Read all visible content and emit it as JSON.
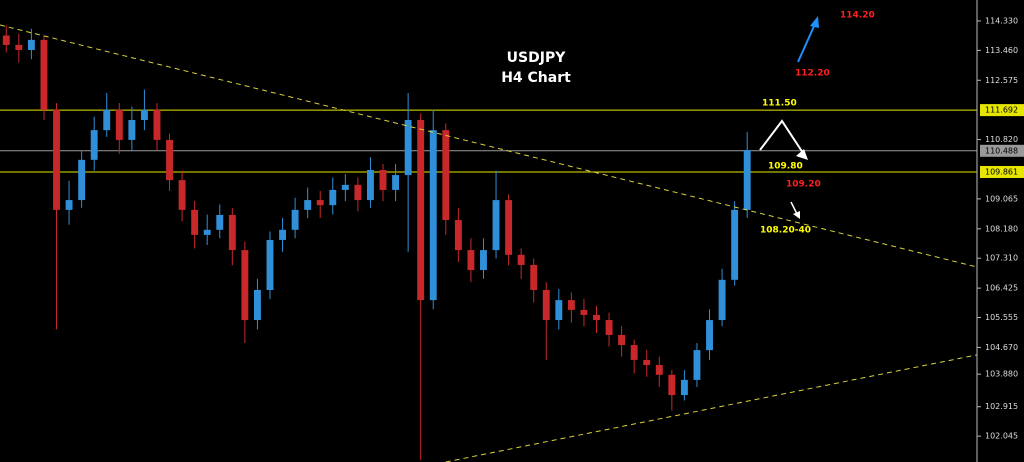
{
  "chart_data": {
    "type": "candlestick",
    "title": "USDJPY",
    "subtitle": "H4 Chart",
    "xlim": [
      -0.5,
      77.3
    ],
    "ylim": [
      101.28,
      114.95
    ],
    "yticks": [
      {
        "value": 114.33,
        "label": "114.330"
      },
      {
        "value": 113.46,
        "label": "113.460"
      },
      112.575,
      {
        "value": 110.82,
        "label": "110.820"
      },
      109.065,
      {
        "value": 108.18,
        "label": "108.180"
      },
      {
        "value": 107.31,
        "label": "107.310"
      },
      106.425,
      105.555,
      {
        "value": 104.67,
        "label": "104.670"
      },
      {
        "value": 103.88,
        "label": "103.880"
      },
      102.915,
      102.045
    ],
    "up_color": "#2f8fd8",
    "down_color": "#c8282a",
    "open": [
      113.9,
      113.62,
      113.47,
      113.77,
      111.7,
      108.74,
      109.03,
      110.22,
      111.1,
      111.7,
      110.81,
      111.4,
      111.7,
      110.81,
      109.62,
      108.74,
      108.0,
      108.15,
      108.59,
      107.55,
      105.48,
      106.37,
      107.85,
      108.15,
      108.74,
      109.03,
      108.88,
      109.33,
      109.48,
      109.03,
      109.92,
      109.33,
      109.77,
      111.4,
      106.07,
      111.1,
      108.44,
      107.55,
      106.96,
      107.55,
      109.03,
      107.41,
      107.11,
      106.37,
      105.48,
      106.07,
      105.78,
      105.63,
      105.48,
      105.04,
      104.74,
      104.3,
      104.15,
      103.86,
      103.26,
      103.71,
      104.59,
      105.48,
      106.67,
      108.74
    ],
    "high": [
      114.2,
      113.95,
      114.1,
      113.9,
      111.9,
      109.6,
      110.5,
      111.5,
      112.2,
      111.9,
      111.8,
      112.3,
      111.9,
      111.0,
      109.9,
      109.0,
      108.6,
      108.9,
      108.8,
      107.8,
      106.7,
      108.1,
      108.5,
      109.1,
      109.4,
      109.3,
      109.7,
      109.8,
      109.7,
      110.3,
      110.1,
      110.1,
      112.2,
      111.6,
      111.7,
      111.3,
      108.8,
      107.9,
      107.9,
      109.9,
      109.2,
      107.6,
      107.3,
      106.6,
      106.4,
      106.3,
      106.1,
      105.9,
      105.7,
      105.3,
      104.9,
      104.6,
      104.4,
      104.0,
      104.0,
      104.8,
      105.8,
      107.0,
      109.0,
      111.05
    ],
    "low": [
      113.4,
      113.1,
      113.2,
      111.4,
      105.2,
      108.3,
      108.8,
      109.9,
      110.9,
      110.4,
      110.5,
      111.1,
      110.5,
      109.3,
      108.4,
      107.6,
      107.7,
      107.9,
      107.1,
      104.8,
      105.2,
      106.1,
      107.5,
      107.9,
      108.5,
      108.5,
      108.6,
      109.0,
      108.7,
      108.8,
      109.0,
      109.0,
      107.5,
      101.34,
      105.8,
      108.0,
      107.2,
      106.6,
      106.7,
      107.3,
      107.1,
      106.7,
      106.0,
      104.3,
      105.2,
      105.4,
      105.3,
      105.1,
      104.7,
      104.4,
      103.9,
      103.8,
      103.5,
      102.8,
      103.1,
      103.5,
      104.3,
      105.3,
      106.5,
      108.5
    ],
    "close": [
      113.62,
      113.47,
      113.77,
      111.7,
      108.74,
      109.03,
      110.22,
      111.1,
      111.7,
      110.81,
      111.4,
      111.7,
      110.81,
      109.62,
      108.74,
      108.0,
      108.15,
      108.59,
      107.55,
      105.48,
      106.37,
      107.85,
      108.15,
      108.74,
      109.03,
      108.88,
      109.33,
      109.48,
      109.03,
      109.92,
      109.33,
      109.77,
      111.4,
      106.07,
      111.1,
      108.44,
      107.55,
      106.96,
      107.55,
      109.03,
      107.41,
      107.11,
      106.37,
      105.48,
      106.07,
      105.78,
      105.63,
      105.48,
      105.04,
      104.74,
      104.3,
      104.15,
      103.86,
      103.26,
      103.71,
      104.59,
      105.48,
      106.67,
      108.74,
      110.51
    ],
    "levels": [
      {
        "value": 111.692,
        "color": "#e6e600"
      },
      {
        "value": 110.488,
        "color": "#9a9a9a"
      },
      {
        "value": 109.861,
        "color": "#e6e600"
      }
    ],
    "trendlines": [
      {
        "x": [
          -0.5,
          77.3
        ],
        "y": [
          114.21,
          107.05
        ],
        "color": "#d8d040"
      },
      {
        "x": [
          35.0,
          77.3
        ],
        "y": [
          101.28,
          104.45
        ],
        "color": "#d8d040"
      }
    ],
    "annotations": [
      {
        "text": "114.20",
        "color": "#ff2020"
      },
      {
        "text": "112.20",
        "color": "#ff2020"
      },
      {
        "text": "111.50",
        "color": "#ffff00"
      },
      {
        "text": "109.80",
        "color": "#ffff00"
      },
      {
        "text": "109.20",
        "color": "#ff2020"
      },
      {
        "text": "108.20-40",
        "color": "#ffff00"
      }
    ]
  }
}
